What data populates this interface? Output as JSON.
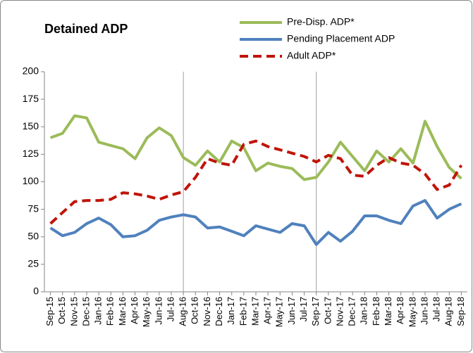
{
  "chart_data": {
    "type": "line",
    "title": "Detained ADP",
    "categories": [
      "Sep-15",
      "Oct-15",
      "Nov-15",
      "Dec-15",
      "Jan-16",
      "Feb-16",
      "Mar-16",
      "Apr-16",
      "May-16",
      "Jun-16",
      "Jul-16",
      "Aug-16",
      "Oct-16",
      "Nov-16",
      "Dec-16",
      "Jan-17",
      "Feb-17",
      "Mar-17",
      "Apr-17",
      "May-17",
      "Jun-17",
      "Jul-17",
      "Sep-17",
      "Oct-17",
      "Nov-17",
      "Dec-17",
      "Jan-18",
      "Feb-18",
      "Mar-18",
      "Apr-18",
      "May-18",
      "Jun-18",
      "Jul-18",
      "Aug-18",
      "Sep-18"
    ],
    "series": [
      {
        "name": "Pre-Disp. ADP*",
        "color": "#9bbb59",
        "dash": false,
        "values": [
          140,
          144,
          160,
          158,
          136,
          133,
          130,
          121,
          140,
          149,
          142,
          122,
          115,
          128,
          118,
          137,
          131,
          110,
          117,
          114,
          112,
          102,
          104,
          118,
          136,
          123,
          110,
          128,
          118,
          130,
          117,
          155,
          132,
          113,
          103
        ]
      },
      {
        "name": "Pending Placement ADP",
        "color": "#4f81bd",
        "dash": false,
        "values": [
          58,
          51,
          54,
          62,
          67,
          61,
          50,
          51,
          56,
          65,
          68,
          70,
          68,
          58,
          59,
          55,
          51,
          60,
          57,
          54,
          62,
          60,
          43,
          54,
          46,
          55,
          69,
          69,
          65,
          62,
          78,
          83,
          67,
          75,
          80
        ]
      },
      {
        "name": "Adult ADP*",
        "color": "#c0140a",
        "dash": true,
        "values": [
          62,
          72,
          82,
          83,
          83,
          84,
          90,
          89,
          87,
          84,
          88,
          91,
          104,
          121,
          117,
          115,
          134,
          137,
          132,
          129,
          126,
          123,
          118,
          124,
          121,
          106,
          105,
          115,
          122,
          117,
          115,
          107,
          93,
          97,
          115
        ]
      }
    ],
    "ylim": [
      0,
      200
    ],
    "yticks": [
      0,
      25,
      50,
      75,
      100,
      125,
      150,
      175,
      200
    ],
    "grid": false
  }
}
